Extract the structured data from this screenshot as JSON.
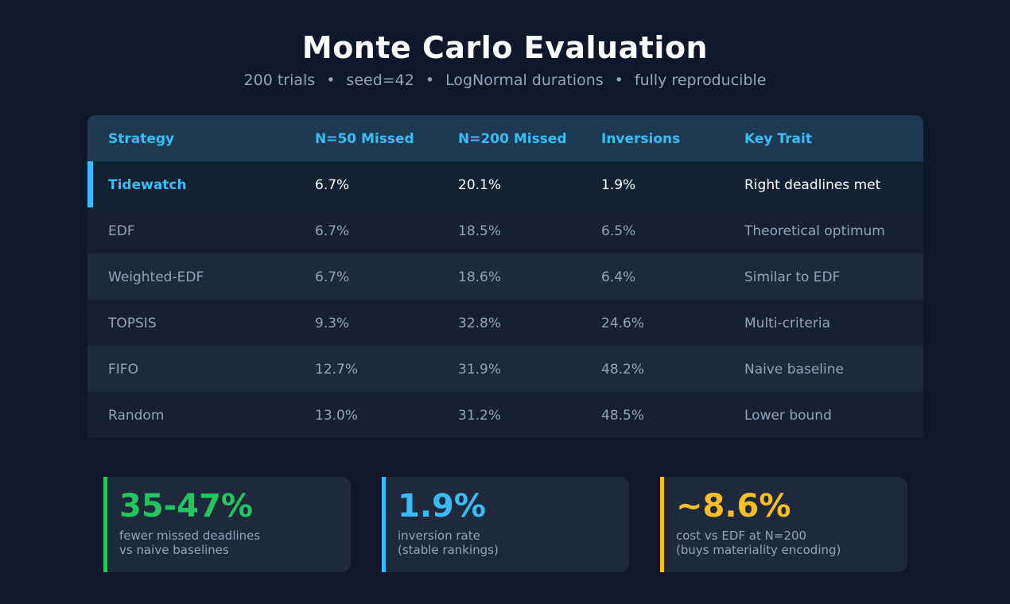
{
  "header": {
    "title": "Monte Carlo Evaluation",
    "subtitle_parts": [
      "200 trials",
      "seed=42",
      "LogNormal durations",
      "fully reproducible"
    ],
    "separator": "•"
  },
  "table": {
    "columns": [
      "Strategy",
      "N=50 Missed",
      "N=200 Missed",
      "Inversions",
      "Key Trait"
    ],
    "rows": [
      {
        "strategy": "Tidewatch",
        "n50": "6.7%",
        "n200": "20.1%",
        "inversions": "1.9%",
        "trait": "Right deadlines met"
      },
      {
        "strategy": "EDF",
        "n50": "6.7%",
        "n200": "18.5%",
        "inversions": "6.5%",
        "trait": "Theoretical optimum"
      },
      {
        "strategy": "Weighted-EDF",
        "n50": "6.7%",
        "n200": "18.6%",
        "inversions": "6.4%",
        "trait": "Similar to EDF"
      },
      {
        "strategy": "TOPSIS",
        "n50": "9.3%",
        "n200": "32.8%",
        "inversions": "24.6%",
        "trait": "Multi-criteria"
      },
      {
        "strategy": "FIFO",
        "n50": "12.7%",
        "n200": "31.9%",
        "inversions": "48.2%",
        "trait": "Naive baseline"
      },
      {
        "strategy": "Random",
        "n50": "13.0%",
        "n200": "31.2%",
        "inversions": "48.5%",
        "trait": "Lower bound"
      }
    ]
  },
  "cards": [
    {
      "value": "35-47%",
      "line1": "fewer missed deadlines",
      "line2": "vs naive baselines",
      "color": "#22c55e"
    },
    {
      "value": "1.9%",
      "line1": "inversion rate",
      "line2": "(stable rankings)",
      "color": "#38bdf8"
    },
    {
      "value": "~8.6%",
      "line1": "cost vs EDF at N=200",
      "line2": "(buys materiality encoding)",
      "color": "#fbbf24"
    }
  ]
}
